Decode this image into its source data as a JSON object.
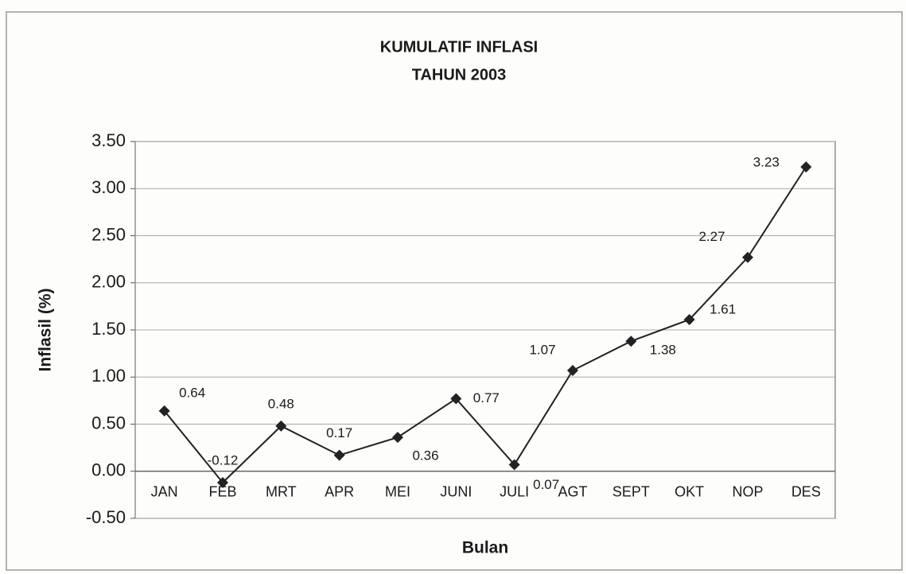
{
  "chart_data": {
    "type": "line",
    "title": "KUMULATIF INFLASI",
    "subtitle": "TAHUN 2003",
    "x_label": "Bulan",
    "y_label": "Inflasil (%)",
    "categories": [
      "JAN",
      "FEB",
      "MRT",
      "APR",
      "MEI",
      "JUNI",
      "JULI",
      "AGT",
      "SEPT",
      "OKT",
      "NOP",
      "DES"
    ],
    "series": [
      {
        "name": "Inflasi",
        "color": "#222222",
        "values": [
          0.64,
          -0.12,
          0.48,
          0.17,
          0.36,
          0.77,
          0.07,
          1.07,
          1.38,
          1.61,
          2.27,
          3.23
        ]
      }
    ],
    "ylim": [
      -0.5,
      3.5
    ],
    "yticks": [
      {
        "value": -0.5,
        "label": "-0.50"
      },
      {
        "value": 0,
        "label": "0.00"
      },
      {
        "value": 0.5,
        "label": "0.50"
      },
      {
        "value": 1,
        "label": "1.00"
      },
      {
        "value": 1.5,
        "label": "1.50"
      },
      {
        "value": 2,
        "label": "2.00"
      },
      {
        "value": 2.5,
        "label": "2.50"
      },
      {
        "value": 3,
        "label": "3.00"
      },
      {
        "value": 3.5,
        "label": "3.50"
      }
    ],
    "grid": true
  }
}
